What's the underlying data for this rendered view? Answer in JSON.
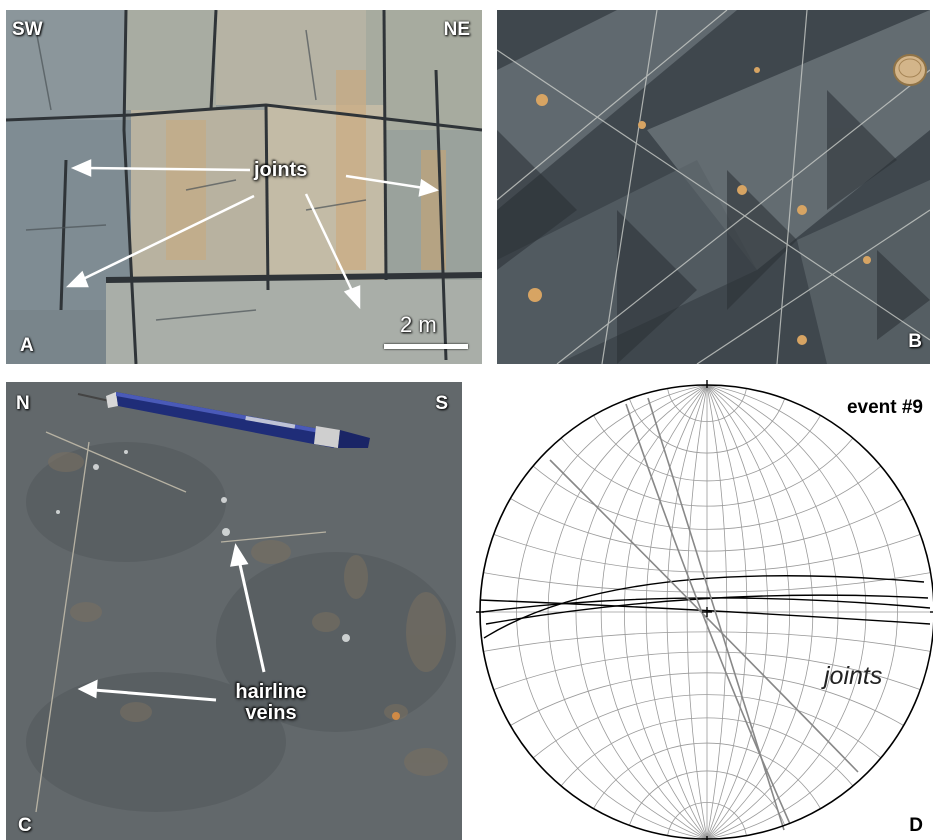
{
  "panel_a": {
    "orientation_left": "SW",
    "orientation_right": "NE",
    "panel_letter": "A",
    "callout": "joints",
    "scale_label": "2 m"
  },
  "panel_b": {
    "panel_letter": "B"
  },
  "panel_c": {
    "orientation_left": "N",
    "orientation_right": "S",
    "panel_letter": "C",
    "callout_line1": "hairline",
    "callout_line2": "veins"
  },
  "panel_d": {
    "title": "event #9",
    "label": "joints",
    "panel_letter": "D"
  },
  "colors": {
    "rock_gray": "#8c98a0",
    "rock_dark": "#3b4147",
    "bedding_surface": "#6b7072",
    "stereonet_grid": "#9a9a9a",
    "great_circle_black": "#000000",
    "great_circle_gray": "#888888"
  }
}
